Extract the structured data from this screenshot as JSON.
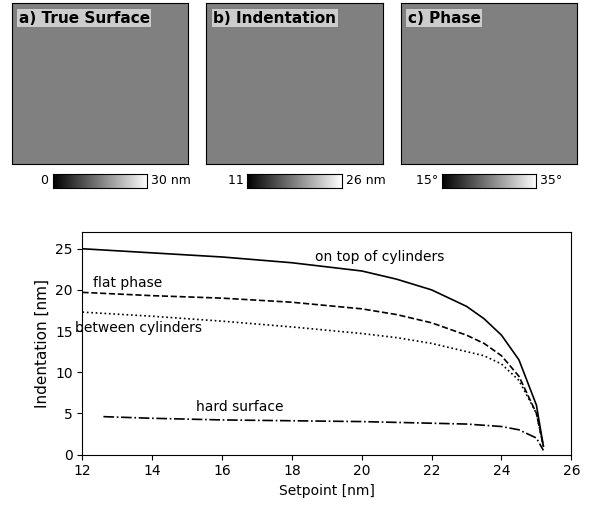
{
  "panels": [
    {
      "title": "a) True Surface",
      "colorbar": {
        "range": [
          0,
          30
        ],
        "ticks": [
          {
            "value": 0,
            "label": "0"
          },
          {
            "value": 30,
            "label": "30 nm"
          }
        ]
      }
    },
    {
      "title": "b) Indentation",
      "colorbar": {
        "range": [
          11,
          26
        ],
        "ticks": [
          {
            "value": 11,
            "label": "11"
          },
          {
            "value": 26,
            "label": "26 nm"
          }
        ]
      }
    },
    {
      "title": "c) Phase",
      "colorbar": {
        "range": [
          15,
          35
        ],
        "ticks": [
          {
            "value": 15,
            "label": "15°"
          },
          {
            "value": 35,
            "label": "35°"
          }
        ]
      }
    }
  ],
  "chart_data": {
    "type": "line",
    "x_label": "Setpoint [nm]",
    "y_label": "Indentation [nm]",
    "xlim": [
      12,
      26
    ],
    "xticks": [
      12,
      14,
      16,
      18,
      20,
      22,
      24,
      26
    ],
    "ylim": [
      0,
      27
    ],
    "yticks": [
      0,
      5,
      10,
      15,
      20,
      25
    ],
    "grid": false,
    "series": [
      {
        "name": "on top of cylinders",
        "color": "#000000",
        "line_style": "solid",
        "x": [
          12,
          14,
          16,
          18,
          20,
          21,
          22,
          23,
          23.5,
          24,
          24.5,
          25,
          25.2
        ],
        "values": [
          25,
          24.5,
          24,
          23.3,
          22.3,
          21.3,
          20,
          18,
          16.5,
          14.5,
          11.5,
          6,
          1
        ]
      },
      {
        "name": "flat phase",
        "color": "#000000",
        "line_style": "dashed",
        "x": [
          12,
          14,
          16,
          18,
          20,
          21,
          22,
          23,
          23.5,
          24,
          24.5,
          25,
          25.2
        ],
        "values": [
          19.7,
          19.3,
          19,
          18.5,
          17.7,
          17,
          16,
          14.5,
          13.5,
          12,
          9.5,
          5,
          1
        ]
      },
      {
        "name": "between cylinders",
        "color": "#000000",
        "line_style": "dotted",
        "x": [
          12,
          14,
          16,
          18,
          20,
          21,
          22,
          23,
          23.5,
          24,
          24.5,
          25,
          25.2
        ],
        "values": [
          17.3,
          16.8,
          16.2,
          15.5,
          14.7,
          14.2,
          13.5,
          12.5,
          12,
          11,
          9,
          5,
          1
        ]
      },
      {
        "name": "hard surface",
        "color": "#000000",
        "line_style": "dashdot",
        "x": [
          12.6,
          14,
          16,
          18,
          20,
          22,
          23,
          24,
          24.5,
          25,
          25.2
        ],
        "values": [
          4.6,
          4.4,
          4.2,
          4.1,
          4,
          3.8,
          3.7,
          3.4,
          3,
          2,
          0.5
        ]
      }
    ]
  }
}
